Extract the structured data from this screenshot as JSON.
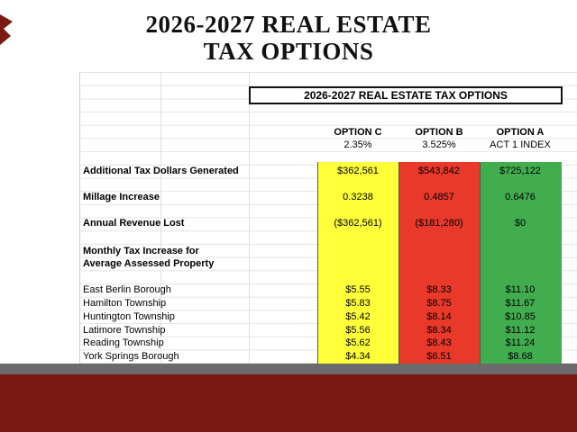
{
  "header": {
    "title_lines": [
      "2026-2027 REAL ESTATE",
      "TAX OPTIONS"
    ]
  },
  "table": {
    "title": "2026-2027 REAL ESTATE TAX OPTIONS",
    "columns": [
      {
        "name": "OPTION C",
        "sub": "2.35%"
      },
      {
        "name": "OPTION B",
        "sub": "3.525%"
      },
      {
        "name": "OPTION A",
        "sub": "ACT 1 INDEX"
      }
    ],
    "rows": [
      {
        "label": [
          "Additional Tax Dollars Generated"
        ],
        "values": [
          "$362,561",
          "$543,842",
          "$725,122"
        ]
      },
      {
        "label": [
          "Millage Increase"
        ],
        "values": [
          "0.3238",
          "0.4857",
          "0.6476"
        ]
      },
      {
        "label": [
          "Annual Revenue Lost"
        ],
        "values": [
          "($362,561)",
          "($181,280)",
          "$0"
        ]
      },
      {
        "label": [
          "Monthly Tax Increase for",
          "Average Assessed Property"
        ],
        "values": []
      },
      {
        "label": [
          "East Berlin Borough"
        ],
        "values": [
          "$5.55",
          "$8.33",
          "$11.10"
        ]
      },
      {
        "label": [
          "Hamilton Township"
        ],
        "values": [
          "$5.83",
          "$8.75",
          "$11.67"
        ]
      },
      {
        "label": [
          "Huntington Township"
        ],
        "values": [
          "$5.42",
          "$8.14",
          "$10.85"
        ]
      },
      {
        "label": [
          "Latimore Township"
        ],
        "values": [
          "$5.56",
          "$8.34",
          "$11.12"
        ]
      },
      {
        "label": [
          "Reading Township"
        ],
        "values": [
          "$5.62",
          "$8.43",
          "$11.24"
        ]
      },
      {
        "label": [
          "York Springs Borough"
        ],
        "values": [
          "$4.34",
          "$6.51",
          "$8.68"
        ]
      }
    ]
  }
}
